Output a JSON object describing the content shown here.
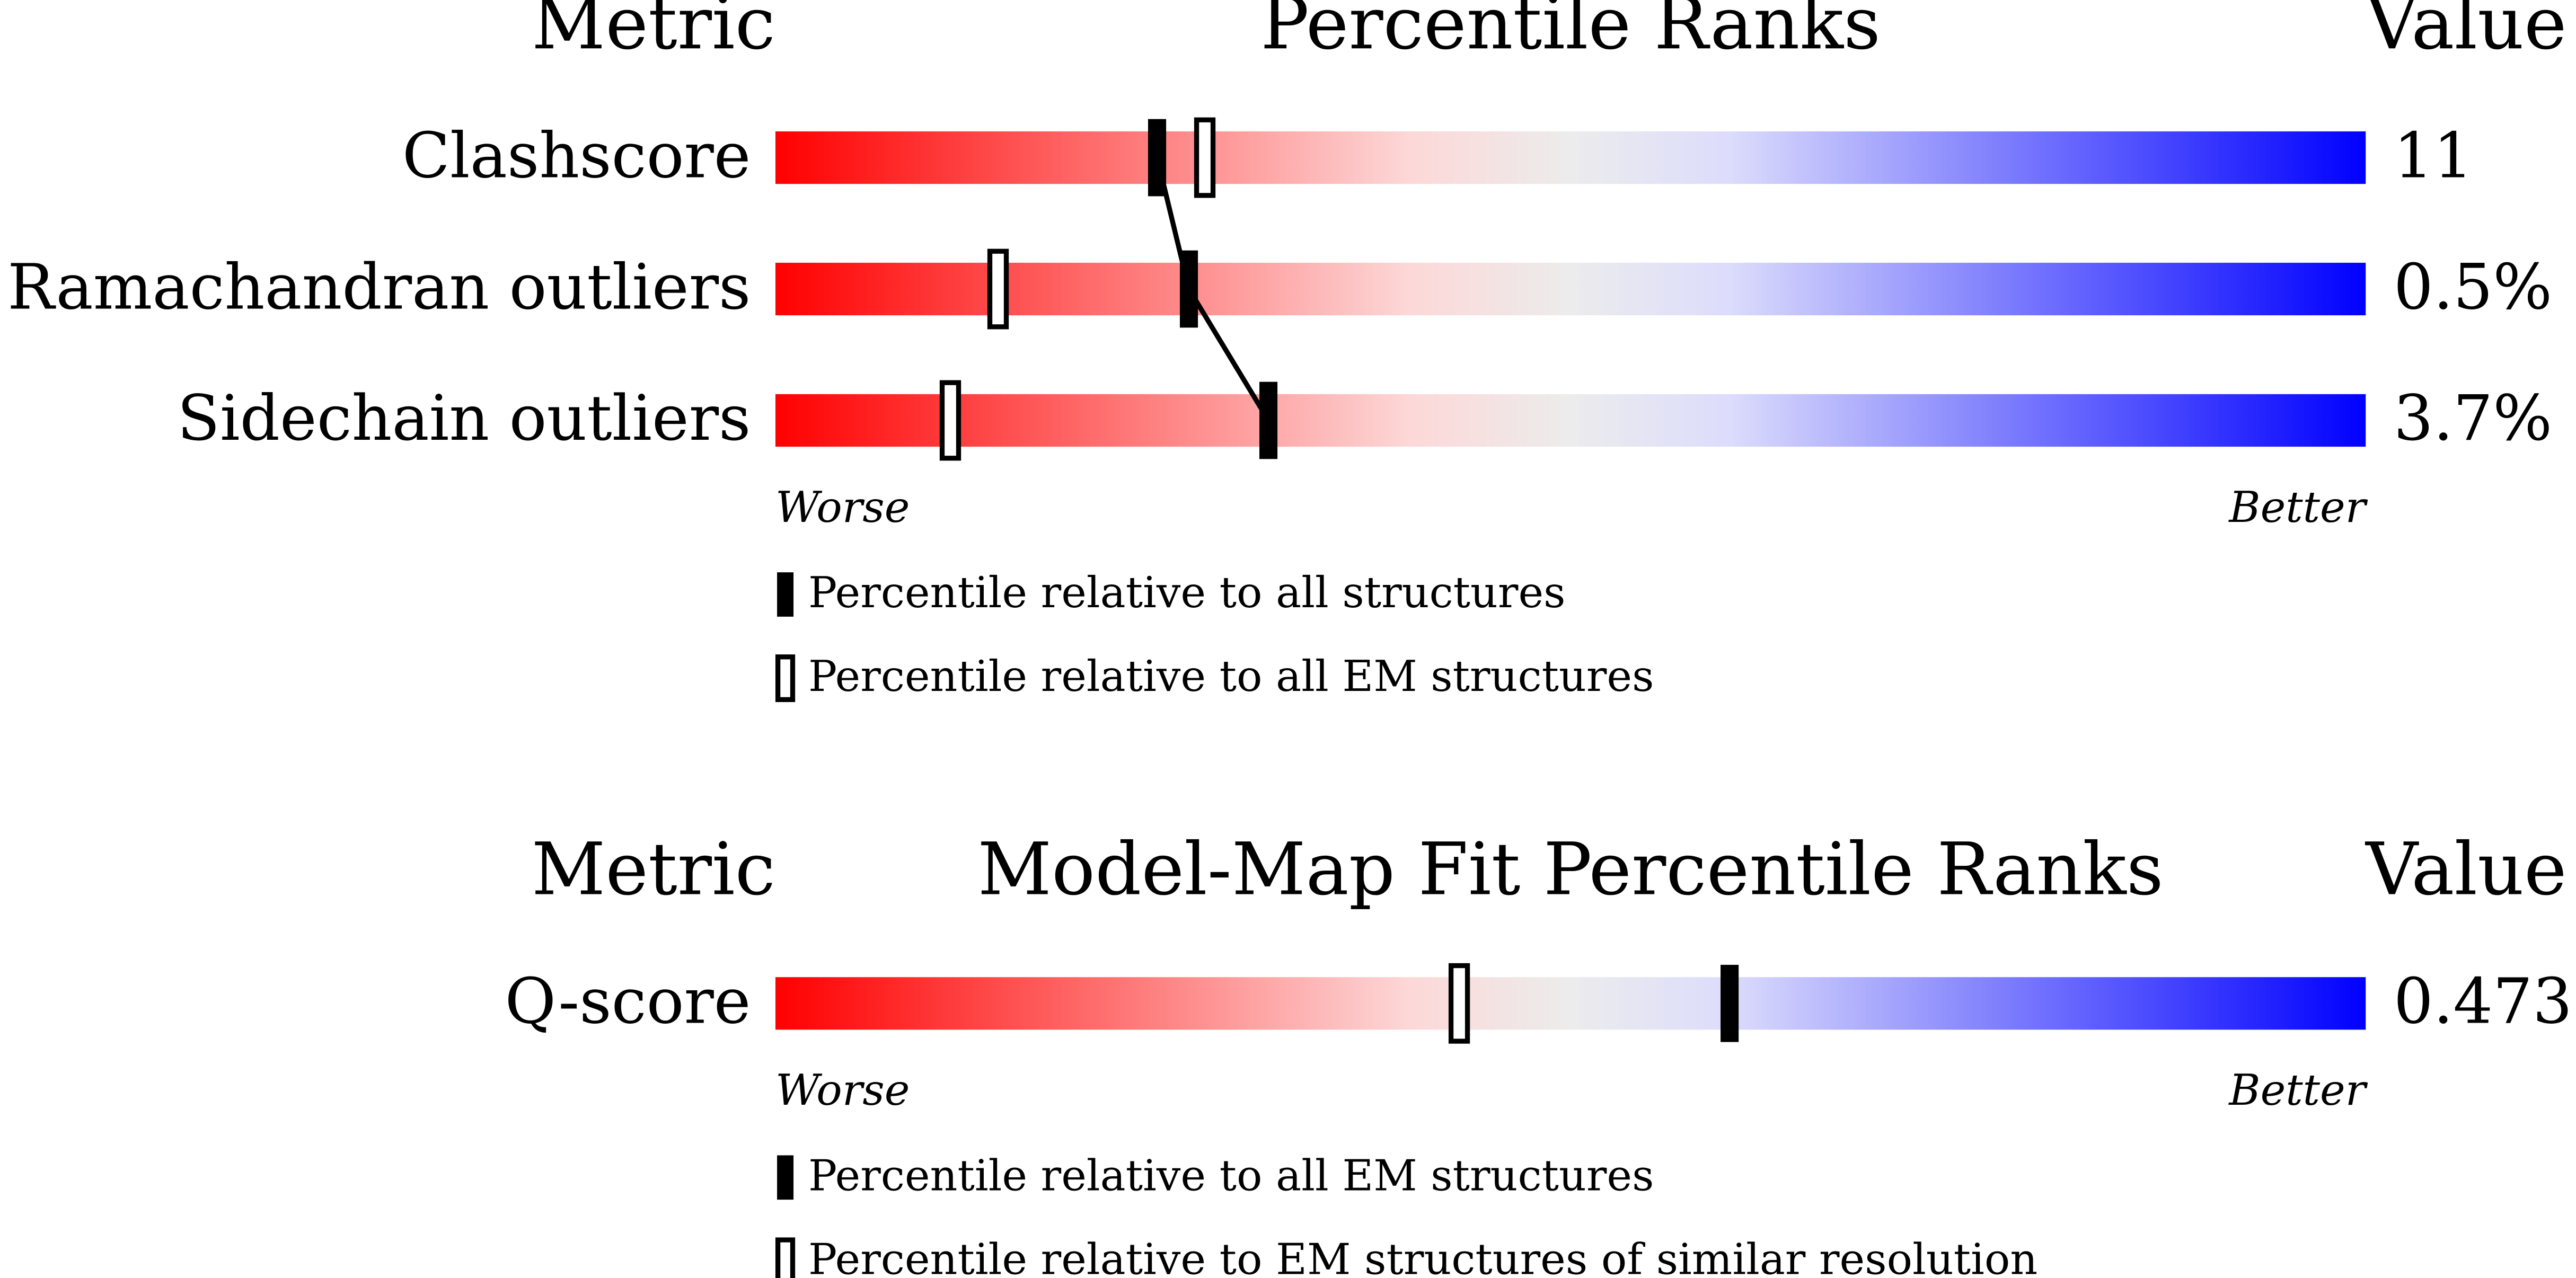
{
  "chart_data": [
    {
      "type": "percentile",
      "header_left": "Metric",
      "title": "Percentile Ranks",
      "header_right": "Value",
      "categories": [
        "Clashscore",
        "Ramachandran outliers",
        "Sidechain outliers"
      ],
      "metric_values": [
        "11",
        "0.5%",
        "3.7%"
      ],
      "series": [
        {
          "name": "Percentile relative to all structures",
          "style": "filled",
          "values": [
            24,
            26,
            31
          ]
        },
        {
          "name": "Percentile relative to all EM structures",
          "style": "open",
          "values": [
            27,
            14,
            11
          ]
        }
      ],
      "xlim": [
        0,
        100
      ],
      "low_label": "Worse",
      "high_label": "Better",
      "connect_series": 0
    },
    {
      "type": "percentile",
      "header_left": "Metric",
      "title": "Model-Map Fit Percentile Ranks",
      "header_right": "Value",
      "categories": [
        "Q-score"
      ],
      "metric_values": [
        "0.473"
      ],
      "series": [
        {
          "name": "Percentile relative to all EM structures",
          "style": "filled",
          "values": [
            60
          ]
        },
        {
          "name": "Percentile relative to EM structures of similar resolution",
          "style": "open",
          "values": [
            43
          ]
        }
      ],
      "xlim": [
        0,
        100
      ],
      "low_label": "Worse",
      "high_label": "Better",
      "connect_series": 0
    }
  ]
}
